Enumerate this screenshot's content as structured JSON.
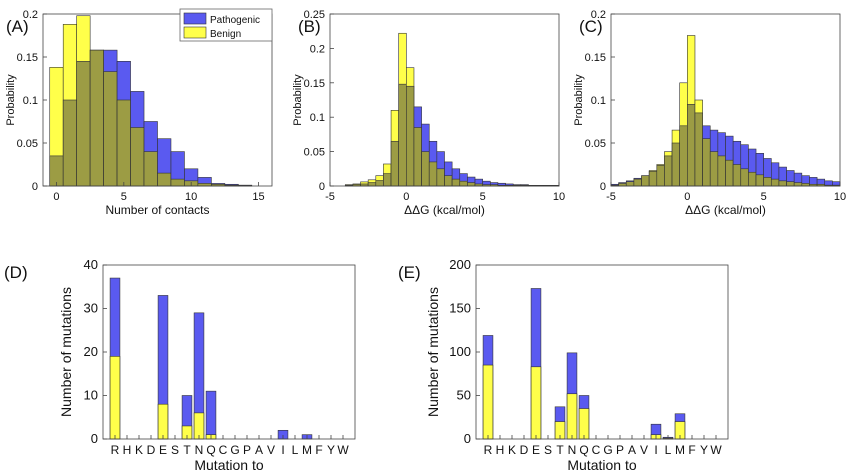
{
  "colors": {
    "pathogenic": "#5a5af0",
    "benign": "#ffff4a",
    "overlap": "#9c9c44",
    "edge": "#333333"
  },
  "chart_data": [
    {
      "id": "A",
      "panel_label": "(A)",
      "type": "bar",
      "xlabel": "Number of contacts",
      "ylabel": "Probability",
      "xlim": [
        -1,
        16
      ],
      "ylim": [
        0,
        0.2
      ],
      "xticks": [
        "0",
        "5",
        "10",
        "15"
      ],
      "xtick_values": [
        0,
        5,
        10,
        15
      ],
      "yticks": [
        "0",
        "0.05",
        "0.1",
        "0.15",
        "0.2"
      ],
      "ytick_values": [
        0,
        0.05,
        0.1,
        0.15,
        0.2
      ],
      "legend": {
        "position": "top-right",
        "entries": [
          "Pathogenic",
          "Benign"
        ]
      },
      "x": [
        0,
        1,
        2,
        3,
        4,
        5,
        6,
        7,
        8,
        9,
        10,
        11,
        12,
        13,
        14
      ],
      "series": [
        {
          "name": "Pathogenic",
          "values": [
            0.035,
            0.1,
            0.145,
            0.158,
            0.158,
            0.145,
            0.11,
            0.075,
            0.055,
            0.04,
            0.02,
            0.01,
            0.003,
            0.002,
            0.001
          ]
        },
        {
          "name": "Benign",
          "values": [
            0.138,
            0.188,
            0.198,
            0.158,
            0.133,
            0.1,
            0.068,
            0.04,
            0.015,
            0.008,
            0.006,
            0.003,
            0.002,
            0.001,
            0.0005
          ]
        }
      ]
    },
    {
      "id": "B",
      "panel_label": "(B)",
      "type": "bar",
      "xlabel": "ΔΔG (kcal/mol)",
      "ylabel": "Probability",
      "xlim": [
        -5,
        10
      ],
      "ylim": [
        0,
        0.25
      ],
      "xticks": [
        "-5",
        "0",
        "5",
        "10"
      ],
      "xtick_values": [
        -5,
        0,
        5,
        10
      ],
      "yticks": [
        "0",
        "0.05",
        "0.1",
        "0.15",
        "0.2",
        "0.25"
      ],
      "ytick_values": [
        0,
        0.05,
        0.1,
        0.15,
        0.2,
        0.25
      ],
      "x": [
        -3.75,
        -3.25,
        -2.75,
        -2.25,
        -1.75,
        -1.25,
        -0.75,
        -0.25,
        0.25,
        0.75,
        1.25,
        1.75,
        2.25,
        2.75,
        3.25,
        3.75,
        4.25,
        4.75,
        5.25,
        5.75,
        6.25,
        6.75,
        7.25,
        7.75,
        8.25,
        8.75,
        9.25,
        9.75
      ],
      "series": [
        {
          "name": "Pathogenic",
          "values": [
            0.001,
            0.002,
            0.003,
            0.005,
            0.008,
            0.018,
            0.065,
            0.148,
            0.145,
            0.115,
            0.09,
            0.065,
            0.05,
            0.035,
            0.025,
            0.018,
            0.013,
            0.01,
            0.007,
            0.005,
            0.004,
            0.003,
            0.002,
            0.002,
            0.001,
            0.001,
            0.001,
            0.001
          ]
        },
        {
          "name": "Benign",
          "values": [
            0.002,
            0.003,
            0.006,
            0.009,
            0.015,
            0.032,
            0.11,
            0.222,
            0.172,
            0.085,
            0.05,
            0.035,
            0.025,
            0.015,
            0.01,
            0.007,
            0.005,
            0.003,
            0.002,
            0.002,
            0.001,
            0.001,
            0.001,
            0.001,
            0.0005,
            0.0005,
            0.0005,
            0.0005
          ]
        }
      ]
    },
    {
      "id": "C",
      "panel_label": "(C)",
      "type": "bar",
      "xlabel": "ΔΔG (kcal/mol)",
      "ylabel": "Probability",
      "xlim": [
        -5,
        10
      ],
      "ylim": [
        0,
        0.2
      ],
      "xticks": [
        "-5",
        "0",
        "5",
        "10"
      ],
      "xtick_values": [
        -5,
        0,
        5,
        10
      ],
      "yticks": [
        "0",
        "0.05",
        "0.1",
        "0.15",
        "0.2"
      ],
      "ytick_values": [
        0,
        0.05,
        0.1,
        0.15,
        0.2
      ],
      "x": [
        -4.75,
        -4.25,
        -3.75,
        -3.25,
        -2.75,
        -2.25,
        -1.75,
        -1.25,
        -0.75,
        -0.25,
        0.25,
        0.75,
        1.25,
        1.75,
        2.25,
        2.75,
        3.25,
        3.75,
        4.25,
        4.75,
        5.25,
        5.75,
        6.25,
        6.75,
        7.25,
        7.75,
        8.25,
        8.75,
        9.25,
        9.75
      ],
      "series": [
        {
          "name": "Pathogenic",
          "values": [
            0.002,
            0.004,
            0.006,
            0.009,
            0.012,
            0.017,
            0.024,
            0.035,
            0.05,
            0.07,
            0.095,
            0.085,
            0.07,
            0.065,
            0.062,
            0.058,
            0.052,
            0.048,
            0.043,
            0.038,
            0.032,
            0.027,
            0.022,
            0.018,
            0.015,
            0.012,
            0.01,
            0.008,
            0.006,
            0.005
          ]
        },
        {
          "name": "Benign",
          "values": [
            0.001,
            0.003,
            0.005,
            0.008,
            0.012,
            0.018,
            0.025,
            0.04,
            0.065,
            0.12,
            0.175,
            0.1,
            0.055,
            0.04,
            0.035,
            0.03,
            0.025,
            0.02,
            0.016,
            0.013,
            0.01,
            0.008,
            0.006,
            0.005,
            0.004,
            0.003,
            0.002,
            0.002,
            0.001,
            0.001
          ]
        }
      ]
    },
    {
      "id": "D",
      "panel_label": "(D)",
      "type": "bar",
      "xlabel": "Mutation to",
      "ylabel": "Number of mutations",
      "ylim": [
        0,
        40
      ],
      "yticks": [
        "0",
        "10",
        "20",
        "30",
        "40"
      ],
      "ytick_values": [
        0,
        10,
        20,
        30,
        40
      ],
      "categories": [
        "R",
        "H",
        "K",
        "D",
        "E",
        "S",
        "T",
        "N",
        "Q",
        "C",
        "G",
        "P",
        "A",
        "V",
        "I",
        "L",
        "M",
        "F",
        "Y",
        "W"
      ],
      "series": [
        {
          "name": "Pathogenic",
          "values": [
            37,
            0,
            0,
            0,
            33,
            0,
            10,
            29,
            11,
            0,
            0,
            0,
            0,
            0,
            2,
            0,
            1,
            0,
            0,
            0
          ]
        },
        {
          "name": "Benign",
          "values": [
            19,
            0,
            0,
            0,
            8,
            0,
            3,
            6,
            1,
            0,
            0,
            0,
            0,
            0,
            0,
            0,
            0,
            0,
            0,
            0
          ]
        }
      ]
    },
    {
      "id": "E",
      "panel_label": "(E)",
      "type": "bar",
      "xlabel": "Mutation to",
      "ylabel": "Number of mutations",
      "ylim": [
        0,
        200
      ],
      "yticks": [
        "0",
        "50",
        "100",
        "150",
        "200"
      ],
      "ytick_values": [
        0,
        50,
        100,
        150,
        200
      ],
      "categories": [
        "R",
        "H",
        "K",
        "D",
        "E",
        "S",
        "T",
        "N",
        "Q",
        "C",
        "G",
        "P",
        "A",
        "V",
        "I",
        "L",
        "M",
        "F",
        "Y",
        "W"
      ],
      "series": [
        {
          "name": "Pathogenic",
          "values": [
            119,
            0,
            0,
            0,
            173,
            0,
            37,
            99,
            50,
            0,
            0,
            0,
            0,
            0,
            17,
            2,
            29,
            0,
            0,
            0
          ]
        },
        {
          "name": "Benign",
          "values": [
            85,
            0,
            0,
            0,
            83,
            0,
            20,
            52,
            35,
            0,
            0,
            0,
            0,
            0,
            5,
            1,
            20,
            0,
            0,
            0
          ]
        }
      ]
    }
  ]
}
